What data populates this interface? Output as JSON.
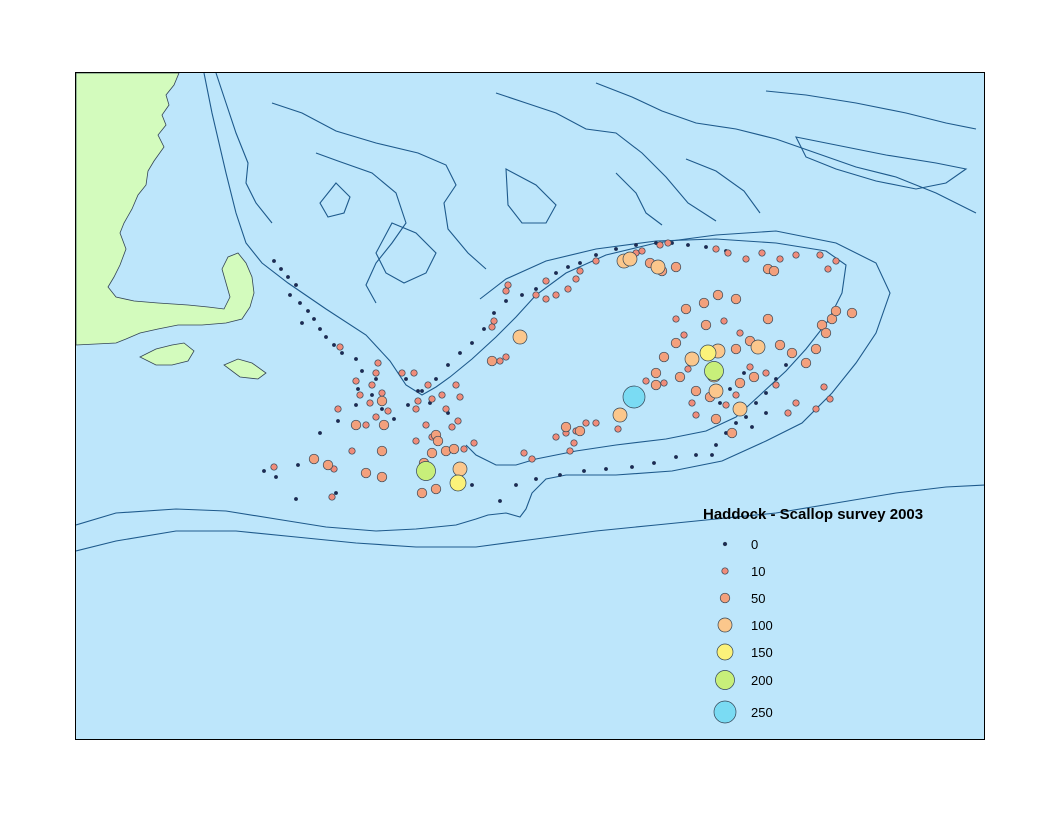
{
  "legend": {
    "title": "Haddock - Scallop survey 2003",
    "classes": [
      {
        "label": "0",
        "value": 0,
        "color": "#1a2a57"
      },
      {
        "label": "10",
        "value": 10,
        "color": "#f08c7a"
      },
      {
        "label": "50",
        "value": 50,
        "color": "#f3a07c"
      },
      {
        "label": "100",
        "value": 100,
        "color": "#fbc78c"
      },
      {
        "label": "150",
        "value": 150,
        "color": "#fbf27a"
      },
      {
        "label": "200",
        "value": 200,
        "color": "#c8ef7a"
      },
      {
        "label": "250",
        "value": 250,
        "color": "#7adbf3"
      }
    ]
  },
  "colors": {
    "ocean": "#bde6fb",
    "land": "#d3fbbd",
    "contour": "#1e5a8c",
    "outline": "#334455"
  }
}
